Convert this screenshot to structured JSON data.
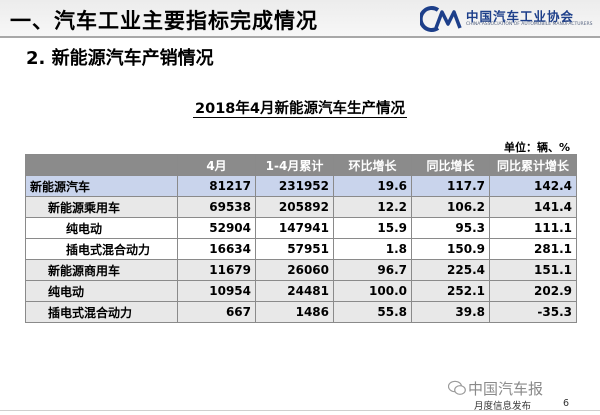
{
  "slide": {
    "title": "一、汽车工业主要指标完成情况",
    "section": "2. 新能源汽车产销情况"
  },
  "logo": {
    "mark_text": "CM",
    "cn": "中国汽车工业协会",
    "en": "CHINA ASSOCIATION OF AUTOMOBILE MANUFACTURERS",
    "color": "#1d3f8a"
  },
  "table": {
    "title": "2018年4月新能源汽车生产情况",
    "unit": "单位：辆、%",
    "header_color": "#8b8b8b",
    "columns": [
      "",
      "4月",
      "1-4月累计",
      "环比增长",
      "同比增长",
      "同比累计增长"
    ],
    "rows": [
      {
        "name": "新能源汽车",
        "level": 0,
        "cells": [
          "81217",
          "231952",
          "19.6",
          "117.7",
          "142.4"
        ]
      },
      {
        "name": "新能源乘用车",
        "level": 1,
        "cells": [
          "69538",
          "205892",
          "12.2",
          "106.2",
          "141.4"
        ]
      },
      {
        "name": "纯电动",
        "level": 2,
        "cells": [
          "52904",
          "147941",
          "15.9",
          "95.3",
          "111.1"
        ]
      },
      {
        "name": "插电式混合动力",
        "level": 2,
        "cells": [
          "16634",
          "57951",
          "1.8",
          "150.9",
          "281.1"
        ]
      },
      {
        "name": "新能源商用车",
        "level": 1,
        "cells": [
          "11679",
          "26060",
          "96.7",
          "225.4",
          "151.1"
        ]
      },
      {
        "name": "纯电动",
        "level": 1,
        "cells": [
          "10954",
          "24481",
          "100.0",
          "252.1",
          "202.9"
        ]
      },
      {
        "name": "插电式混合动力",
        "level": 1,
        "cells": [
          "667",
          "1486",
          "55.8",
          "39.8",
          "-35.3"
        ]
      }
    ]
  },
  "watermark": "中国汽车报",
  "footer": {
    "label": "月度信息发布",
    "page": "6"
  }
}
